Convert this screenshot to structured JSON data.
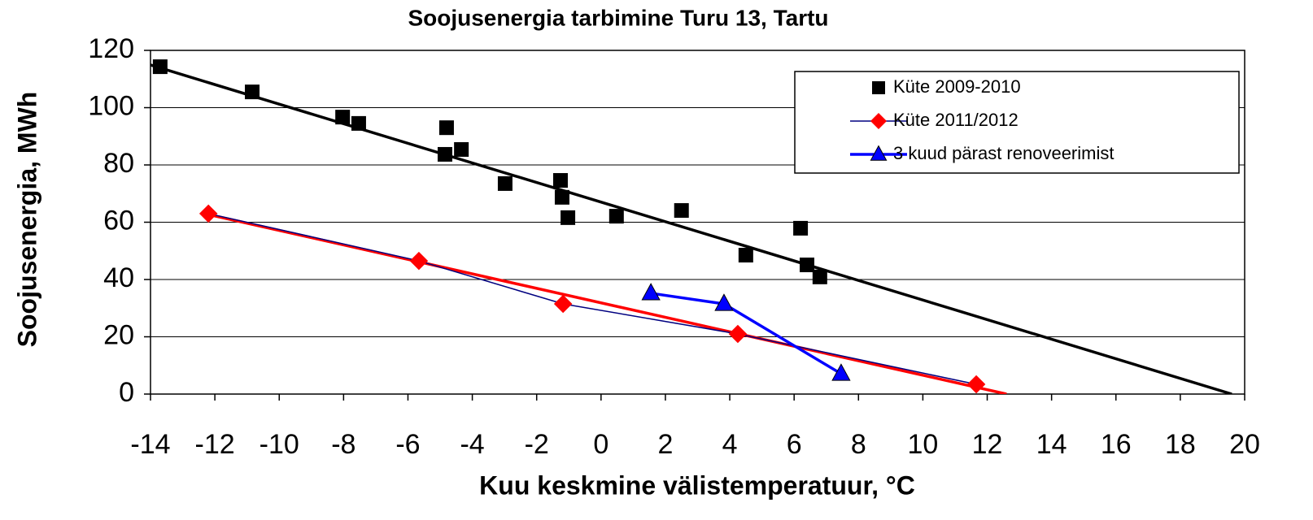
{
  "chart_data": {
    "type": "scatter",
    "title": "Soojusenergia tarbimine Turu 13, Tartu",
    "x_label": "Kuu keskmine välistemperatuur, °C",
    "y_label": "Soojusenergia, MWh",
    "xlim": [
      -14,
      20
    ],
    "ylim": [
      0,
      120
    ],
    "xticks": [
      -14,
      -12,
      -10,
      -8,
      -6,
      -4,
      -2,
      0,
      2,
      4,
      6,
      8,
      10,
      12,
      14,
      16,
      18,
      20
    ],
    "yticks": [
      0,
      20,
      40,
      60,
      80,
      100,
      120
    ],
    "grid": true,
    "legend": "upper right",
    "series": [
      {
        "name": "Küte 2009-2010",
        "color": "#000000",
        "marker": "square",
        "line": false,
        "x": [
          -13.7,
          -10.84,
          -8.03,
          -7.53,
          -4.8,
          -4.85,
          -4.34,
          -2.98,
          -1.26,
          -1.21,
          -1.03,
          0.48,
          2.5,
          4.5,
          6.2,
          6.4,
          6.8
        ],
        "values": [
          114.3,
          105.5,
          96.7,
          94.5,
          93,
          83.7,
          85.4,
          73.5,
          74.6,
          68.7,
          61.6,
          62.1,
          64.1,
          48.5,
          57.9,
          45.1,
          40.9
        ],
        "trendline": {
          "color": "#000000",
          "x": [
            -14,
            19.6
          ],
          "y": [
            114.9,
            0
          ]
        }
      },
      {
        "name": "Küte 2011/2012",
        "color": "#ff0000",
        "marker": "diamond",
        "line": true,
        "line_color": "#000080",
        "line_width": 1.5,
        "x": [
          -12.2,
          -5.66,
          -1.18,
          4.25,
          11.66
        ],
        "values": [
          63,
          46.5,
          31.5,
          21,
          3.4
        ],
        "trendline": {
          "color": "#ff0000",
          "x": [
            -12.2,
            12.6
          ],
          "y": [
            62.7,
            0
          ]
        }
      },
      {
        "name": "3 kuud pärast renoveerimist",
        "color": "#0000ff",
        "marker": "triangle",
        "line": true,
        "line_color": "#0000ff",
        "line_width": 3.5,
        "x": [
          1.55,
          3.82,
          7.46
        ],
        "values": [
          35.2,
          31.5,
          7.1
        ]
      }
    ]
  }
}
